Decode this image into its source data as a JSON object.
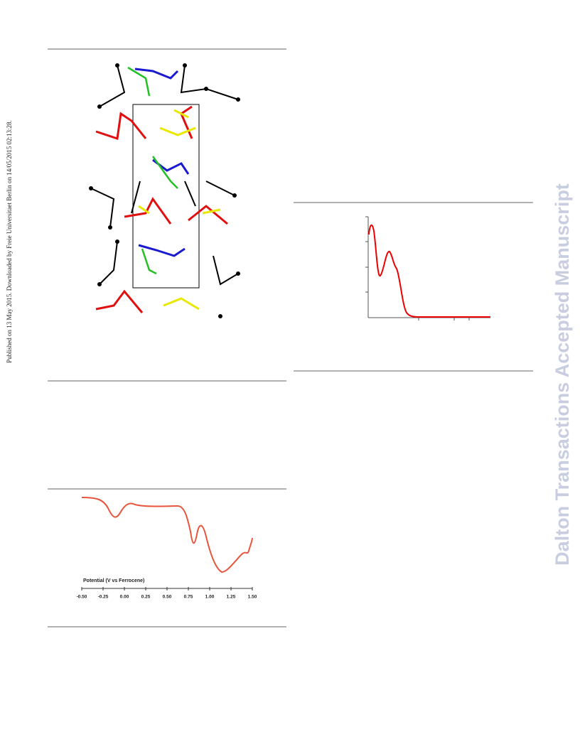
{
  "sidebar": "Published on 13 May 2015. Downloaded by Freie Universitaet Berlin on 14/05/2015 02:13:28.",
  "watermark": "Dalton Transactions Accepted Manuscript",
  "cv_figure": {
    "axis_label": "Potential (V vs Ferrocene)",
    "xlim": [
      -0.5,
      1.5
    ],
    "xticks": [
      {
        "value": -0.5,
        "label": "-0.50"
      },
      {
        "value": -0.25,
        "label": "-0.25"
      },
      {
        "value": 0,
        "label": "0.00"
      },
      {
        "value": 0.25,
        "label": "0.25"
      },
      {
        "value": 0.5,
        "label": "0.50"
      },
      {
        "value": 0.75,
        "label": "0.75"
      },
      {
        "value": 1,
        "label": "1.00"
      },
      {
        "value": 1.25,
        "label": "1.25"
      },
      {
        "value": 1.5,
        "label": "1.50"
      }
    ]
  }
}
